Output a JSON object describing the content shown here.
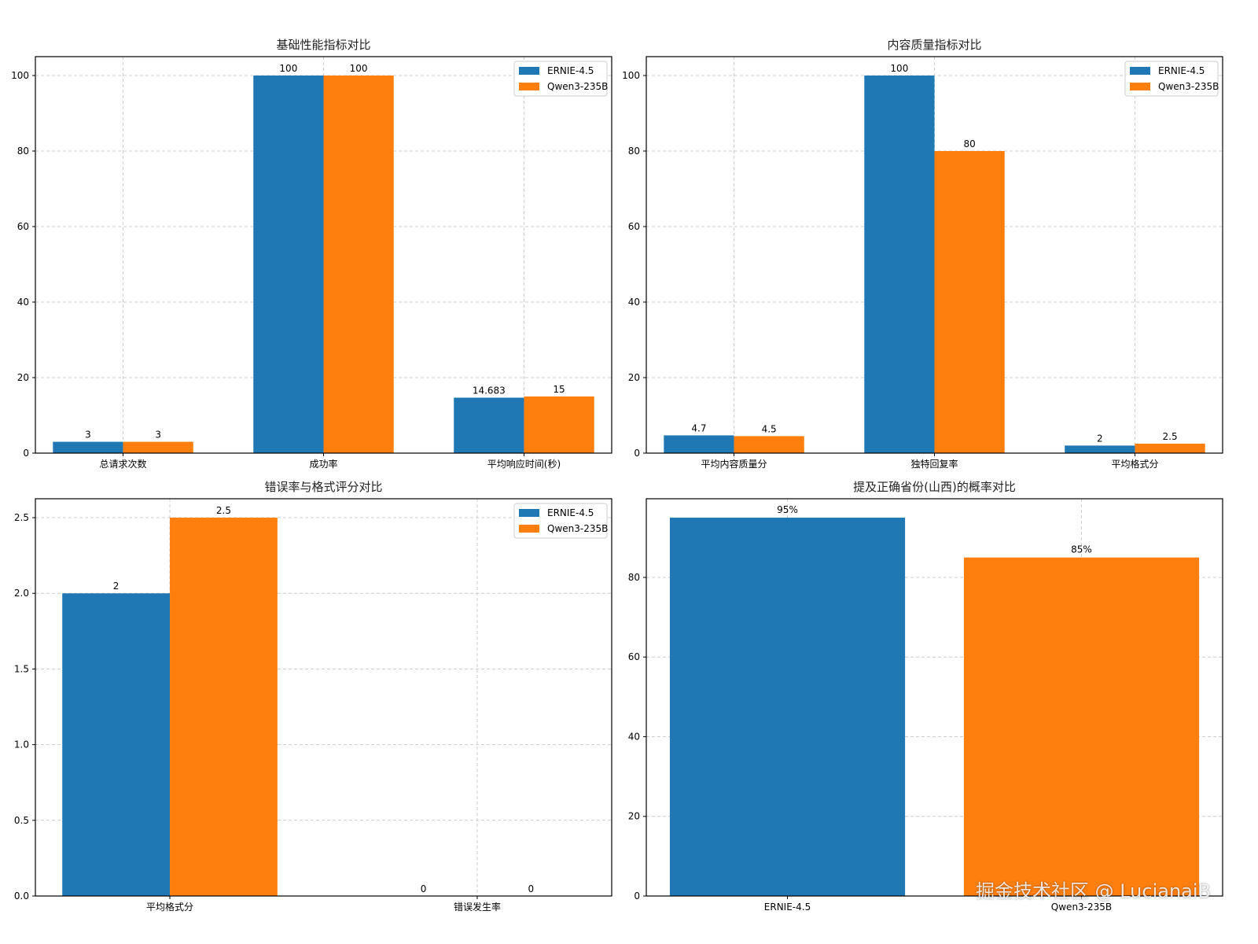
{
  "colors": {
    "ernie": "#1f77b4",
    "qwen": "#ff7f0e",
    "grid": "#cccccc"
  },
  "watermark": "掘金技术社区 @ LucianaiB",
  "chart_data": [
    {
      "type": "bar",
      "title": "基础性能指标对比",
      "categories": [
        "总请求次数",
        "成功率",
        "平均响应时间(秒)"
      ],
      "series": [
        {
          "name": "ERNIE-4.5",
          "values": [
            3,
            100,
            14.683
          ],
          "labels": [
            "3",
            "100",
            "14.683"
          ]
        },
        {
          "name": "Qwen3-235B",
          "values": [
            3,
            100,
            15
          ],
          "labels": [
            "3",
            "100",
            "15"
          ]
        }
      ],
      "yticks": [
        "0",
        "20",
        "40",
        "60",
        "80",
        "100"
      ],
      "ytick_values": [
        0,
        20,
        40,
        60,
        80,
        100
      ],
      "ylim": [
        0,
        105
      ],
      "legend": "top-right",
      "grid": true
    },
    {
      "type": "bar",
      "title": "内容质量指标对比",
      "categories": [
        "平均内容质量分",
        "独特回复率",
        "平均格式分"
      ],
      "series": [
        {
          "name": "ERNIE-4.5",
          "values": [
            4.7,
            100,
            2
          ],
          "labels": [
            "4.7",
            "100",
            "2"
          ]
        },
        {
          "name": "Qwen3-235B",
          "values": [
            4.5,
            80,
            2.5
          ],
          "labels": [
            "4.5",
            "80",
            "2.5"
          ]
        }
      ],
      "yticks": [
        "0",
        "20",
        "40",
        "60",
        "80",
        "100"
      ],
      "ytick_values": [
        0,
        20,
        40,
        60,
        80,
        100
      ],
      "ylim": [
        0,
        105
      ],
      "legend": "top-right",
      "grid": true
    },
    {
      "type": "bar",
      "title": "错误率与格式评分对比",
      "categories": [
        "平均格式分",
        "错误发生率"
      ],
      "series": [
        {
          "name": "ERNIE-4.5",
          "values": [
            2,
            0
          ],
          "labels": [
            "2",
            "0"
          ]
        },
        {
          "name": "Qwen3-235B",
          "values": [
            2.5,
            0
          ],
          "labels": [
            "2.5",
            "0"
          ]
        }
      ],
      "yticks": [
        "0.0",
        "0.5",
        "1.0",
        "1.5",
        "2.0",
        "2.5"
      ],
      "ytick_values": [
        0,
        0.5,
        1.0,
        1.5,
        2.0,
        2.5
      ],
      "ylim": [
        0,
        2.625
      ],
      "legend": "top-right",
      "grid": true
    },
    {
      "type": "bar",
      "title": "提及正确省份(山西)的概率对比",
      "categories": [
        "ERNIE-4.5",
        "Qwen3-235B"
      ],
      "values": [
        95,
        85
      ],
      "labels": [
        "95%",
        "85%"
      ],
      "yticks": [
        "0",
        "20",
        "40",
        "60",
        "80"
      ],
      "ytick_values": [
        0,
        20,
        40,
        60,
        80
      ],
      "ylim": [
        0,
        99.75
      ],
      "legend": "none",
      "grid": true
    }
  ]
}
